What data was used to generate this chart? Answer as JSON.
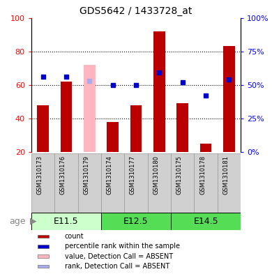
{
  "title": "GDS5642 / 1433728_at",
  "samples": [
    "GSM1310173",
    "GSM1310176",
    "GSM1310179",
    "GSM1310174",
    "GSM1310177",
    "GSM1310180",
    "GSM1310175",
    "GSM1310178",
    "GSM1310181"
  ],
  "count_values": [
    48,
    62,
    72,
    38,
    48,
    92,
    49,
    25,
    83
  ],
  "rank_values": [
    56,
    56,
    53,
    50,
    50,
    59,
    52,
    42,
    54
  ],
  "absent_mask": [
    false,
    false,
    true,
    false,
    false,
    false,
    false,
    false,
    false
  ],
  "ylim_left": [
    20,
    100
  ],
  "ylim_right": [
    0,
    100
  ],
  "yticks_left": [
    20,
    40,
    60,
    80,
    100
  ],
  "yticks_right": [
    0,
    25,
    50,
    75,
    100
  ],
  "bar_color_normal": "#BB0000",
  "bar_color_absent": "#FFB6C1",
  "rank_color_normal": "#0000CC",
  "rank_color_absent": "#AAAAEE",
  "group_info": [
    {
      "label": "E11.5",
      "start": 0,
      "end": 3,
      "color": "#CCFFCC"
    },
    {
      "label": "E12.5",
      "start": 3,
      "end": 6,
      "color": "#55DD55"
    },
    {
      "label": "E14.5",
      "start": 6,
      "end": 9,
      "color": "#55DD55"
    }
  ],
  "legend_items": [
    {
      "color": "#BB0000",
      "label": "count"
    },
    {
      "color": "#0000CC",
      "label": "percentile rank within the sample"
    },
    {
      "color": "#FFB6C1",
      "label": "value, Detection Call = ABSENT"
    },
    {
      "color": "#AAAAEE",
      "label": "rank, Detection Call = ABSENT"
    }
  ],
  "bar_width": 0.5,
  "rank_marker_size": 5,
  "age_label": "age"
}
